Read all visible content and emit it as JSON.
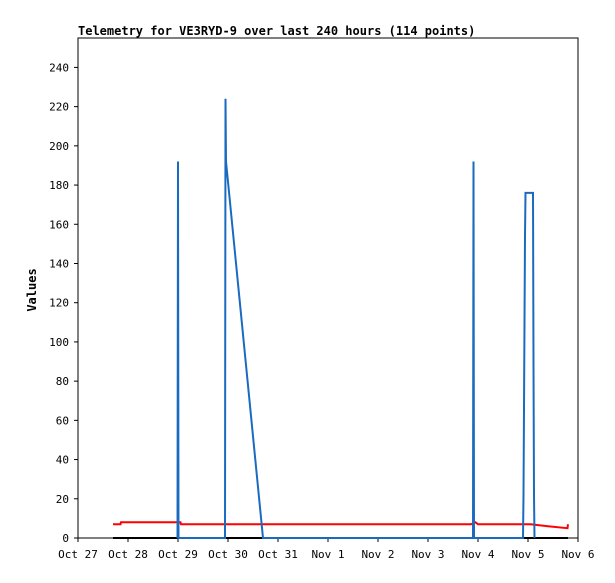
{
  "chart_data": {
    "type": "line",
    "title": "Telemetry for VE3RYD-9 over last 240 hours (114 points)",
    "ylabel": "Values",
    "xlabel": "",
    "x_unit": "days since Oct 27",
    "xlim": [
      0,
      10
    ],
    "ylim": [
      0,
      255
    ],
    "y_ticks": [
      0,
      20,
      40,
      60,
      80,
      100,
      120,
      140,
      160,
      180,
      200,
      220,
      240
    ],
    "x_ticks": [
      {
        "value": 0,
        "label": "Oct 27"
      },
      {
        "value": 1,
        "label": "Oct 28"
      },
      {
        "value": 2,
        "label": "Oct 29"
      },
      {
        "value": 3,
        "label": "Oct 30"
      },
      {
        "value": 4,
        "label": "Oct 31"
      },
      {
        "value": 5,
        "label": "Nov 1"
      },
      {
        "value": 6,
        "label": "Nov 2"
      },
      {
        "value": 7,
        "label": "Nov 3"
      },
      {
        "value": 8,
        "label": "Nov 4"
      },
      {
        "value": 9,
        "label": "Nov 5"
      },
      {
        "value": 10,
        "label": "Nov 6"
      }
    ],
    "grid": false,
    "legend": "none",
    "series": [
      {
        "color": "#000000",
        "x": [
          0.7,
          9.8
        ],
        "y": [
          0,
          0
        ]
      },
      {
        "color": "#ff0000",
        "x": [
          0.7,
          0.85,
          0.86,
          2.05,
          2.06,
          7.85,
          7.86,
          7.95,
          8.0,
          9.05,
          9.4,
          9.79,
          9.8
        ],
        "y": [
          7,
          7,
          8,
          8,
          7,
          7,
          7,
          8,
          7,
          7,
          6,
          5,
          7
        ]
      },
      {
        "color": "#1a6bc0",
        "x": [
          1.99,
          2.0,
          2.01,
          2.94,
          2.95,
          2.96,
          3.7,
          7.9,
          7.91,
          7.92,
          8.9,
          8.91,
          8.92,
          8.93,
          8.94,
          8.95,
          8.96,
          8.97,
          8.98,
          9.1,
          9.11,
          9.12,
          9.13
        ],
        "y": [
          0,
          192,
          0,
          0,
          224,
          192,
          0,
          0,
          192,
          0,
          0,
          22,
          66,
          110,
          154,
          176,
          176,
          176,
          176,
          176,
          88,
          22,
          0
        ]
      }
    ]
  }
}
